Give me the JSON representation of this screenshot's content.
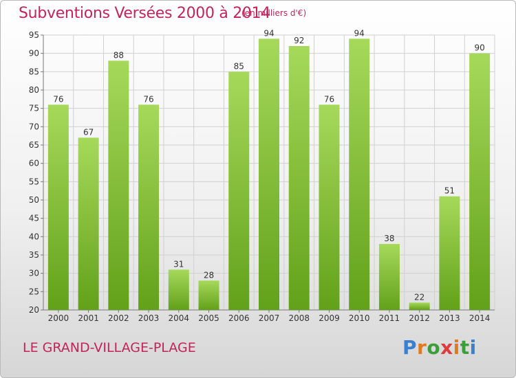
{
  "chart_data": {
    "type": "bar",
    "title": "Subventions Versées 2000 à 2014",
    "subtitle": "(en milliers d'€)",
    "categories": [
      "2000",
      "2001",
      "2002",
      "2003",
      "2004",
      "2005",
      "2006",
      "2007",
      "2008",
      "2009",
      "2010",
      "2011",
      "2012",
      "2013",
      "2014"
    ],
    "values": [
      76,
      67,
      88,
      76,
      31,
      28,
      85,
      94,
      92,
      76,
      94,
      38,
      22,
      51,
      90
    ],
    "ylim": [
      20,
      95
    ],
    "yticks": [
      20,
      25,
      30,
      35,
      40,
      45,
      50,
      55,
      60,
      65,
      70,
      75,
      80,
      85,
      90,
      95
    ],
    "grid": true,
    "bar_color": "#8cc63f",
    "xlabel": "",
    "ylabel": ""
  },
  "footer": {
    "place": "LE GRAND-VILLAGE-PLAGE",
    "logo_letters": [
      "P",
      "r",
      "o",
      "x",
      "i",
      "t",
      "i"
    ],
    "logo_colors": [
      "#3a7fd0",
      "#e07a1f",
      "#3a9e3a",
      "#e03a3a",
      "#e07a1f",
      "#3a9e3a",
      "#3a7fd0"
    ]
  },
  "colors": {
    "title": "#c0245a"
  }
}
